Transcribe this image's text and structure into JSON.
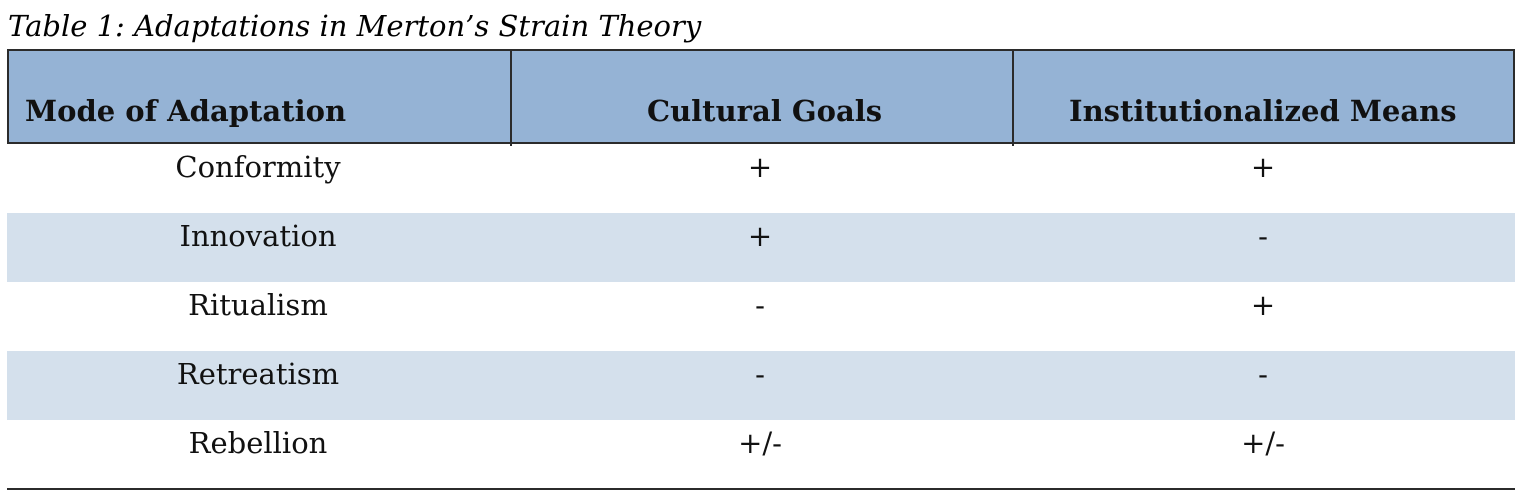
{
  "caption": "Table 1: Adaptations in Merton’s Strain Theory",
  "table": {
    "headers": [
      "Mode of Adaptation",
      "Cultural Goals",
      "Institutionalized Means"
    ],
    "rows": [
      {
        "mode": "Conformity",
        "goals": "+",
        "means": "+"
      },
      {
        "mode": "Innovation",
        "goals": "+",
        "means": "-"
      },
      {
        "mode": "Ritualism",
        "goals": "-",
        "means": "+"
      },
      {
        "mode": "Retreatism",
        "goals": "-",
        "means": "-"
      },
      {
        "mode": "Rebellion",
        "goals": "+/-",
        "means": "+/-"
      }
    ],
    "colors": {
      "header_bg": "#95b3d5",
      "shaded_row_bg": "#d4e0ec",
      "rule": "#2b2b2b"
    }
  }
}
